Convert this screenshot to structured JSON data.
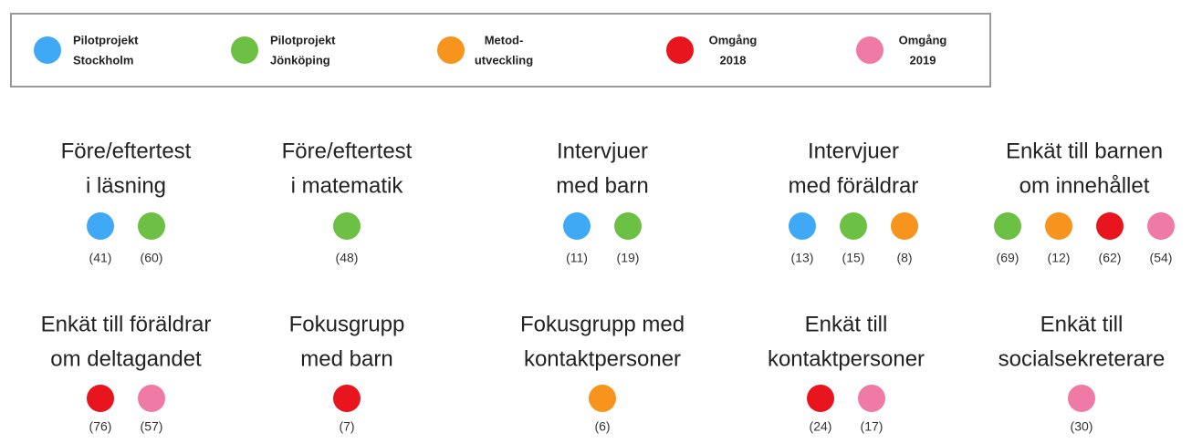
{
  "legend": [
    {
      "lines": [
        "Pilotprojekt",
        "Stockholm"
      ],
      "color": "#3fa9f5"
    },
    {
      "lines": [
        "Pilotprojekt",
        "Jönköping"
      ],
      "color": "#6cc144"
    },
    {
      "lines": [
        "Metod-",
        "utveckling"
      ],
      "color": "#f7941d"
    },
    {
      "lines": [
        "Omgång",
        "2018"
      ],
      "color": "#e8151f"
    },
    {
      "lines": [
        "Omgång",
        "2019"
      ],
      "color": "#f07aa6"
    }
  ],
  "items": [
    {
      "title": [
        "Före/eftertest",
        "i läsning"
      ],
      "dots": [
        {
          "color": "#3fa9f5",
          "count": "(41)"
        },
        {
          "color": "#6cc144",
          "count": "(60)"
        }
      ]
    },
    {
      "title": [
        "Före/eftertest",
        "i matematik"
      ],
      "dots": [
        {
          "color": "#6cc144",
          "count": "(48)"
        }
      ]
    },
    {
      "title": [
        "Intervjuer",
        "med barn"
      ],
      "dots": [
        {
          "color": "#3fa9f5",
          "count": "(11)"
        },
        {
          "color": "#6cc144",
          "count": "(19)"
        }
      ]
    },
    {
      "title": [
        "Intervjuer",
        "med föräldrar"
      ],
      "dots": [
        {
          "color": "#3fa9f5",
          "count": "(13)"
        },
        {
          "color": "#6cc144",
          "count": "(15)"
        },
        {
          "color": "#f7941d",
          "count": "(8)"
        }
      ]
    },
    {
      "title": [
        "Enkät till barnen",
        "om innehållet"
      ],
      "dots": [
        {
          "color": "#6cc144",
          "count": "(69)"
        },
        {
          "color": "#f7941d",
          "count": "(12)"
        },
        {
          "color": "#e8151f",
          "count": "(62)"
        },
        {
          "color": "#f07aa6",
          "count": "(54)"
        }
      ]
    },
    {
      "title": [
        "Enkät till föräldrar",
        "om deltagandet"
      ],
      "dots": [
        {
          "color": "#e8151f",
          "count": "(76)"
        },
        {
          "color": "#f07aa6",
          "count": "(57)"
        }
      ]
    },
    {
      "title": [
        "Fokusgrupp",
        "med barn"
      ],
      "dots": [
        {
          "color": "#e8151f",
          "count": "(7)"
        }
      ]
    },
    {
      "title": [
        "Fokusgrupp med",
        "kontaktpersoner"
      ],
      "dots": [
        {
          "color": "#f7941d",
          "count": "(6)"
        }
      ]
    },
    {
      "title": [
        "Enkät till",
        "kontaktpersoner"
      ],
      "dots": [
        {
          "color": "#e8151f",
          "count": "(24)"
        },
        {
          "color": "#f07aa6",
          "count": "(17)"
        }
      ]
    },
    {
      "title": [
        "Enkät till",
        "socialsekreterare"
      ],
      "dots": [
        {
          "color": "#f07aa6",
          "count": "(30)"
        }
      ]
    }
  ]
}
